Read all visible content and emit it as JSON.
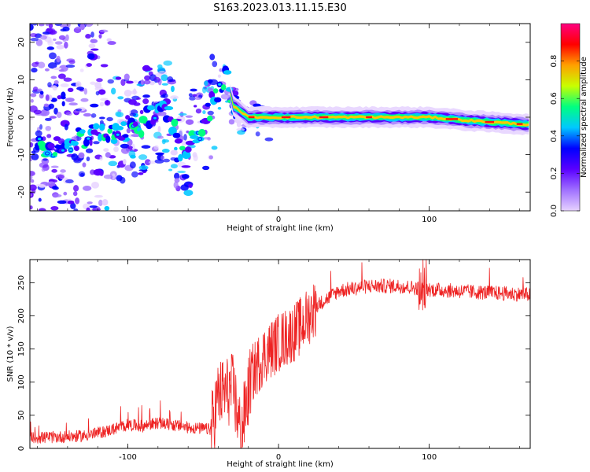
{
  "title": "S163.2023.013.11.15.E30",
  "chart_data": [
    {
      "type": "heatmap",
      "xlabel": "Height of straight line (km)",
      "ylabel": "Frequency (Hz)",
      "xlim": [
        -165,
        167
      ],
      "ylim": [
        -25,
        25
      ],
      "xticks": [
        -100,
        0,
        100
      ],
      "yticks": [
        -20,
        -10,
        0,
        10,
        20
      ],
      "grid": false,
      "colorbar": {
        "label": "Normalized spectral amplitude",
        "range": [
          0,
          1
        ],
        "ticks": [
          "0.0",
          "0.2",
          "0.4",
          "0.6",
          "0.8"
        ],
        "colormap": [
          "#ffffff",
          "#e6d2ff",
          "#a070ff",
          "#5a00ff",
          "#0000ff",
          "#00c8ff",
          "#00ff80",
          "#c8ff00",
          "#ffa000",
          "#ff0000",
          "#ff0080"
        ]
      },
      "ridge": [
        {
          "x": -150,
          "y": -8
        },
        {
          "x": -130,
          "y": -5
        },
        {
          "x": -110,
          "y": -3
        },
        {
          "x": -95,
          "y": -3
        },
        {
          "x": -85,
          "y": 0
        },
        {
          "x": -75,
          "y": 2
        },
        {
          "x": -65,
          "y": -8
        },
        {
          "x": -55,
          "y": -6
        },
        {
          "x": -45,
          "y": 3
        },
        {
          "x": -35,
          "y": 11
        },
        {
          "x": -30,
          "y": 3
        },
        {
          "x": -20,
          "y": 0
        },
        {
          "x": 0,
          "y": 0
        },
        {
          "x": 50,
          "y": 0
        },
        {
          "x": 100,
          "y": 0
        },
        {
          "x": 130,
          "y": -1
        },
        {
          "x": 167,
          "y": -2
        }
      ]
    },
    {
      "type": "line",
      "xlabel": "Height of straight line (km)",
      "ylabel": "SNR (10 * v/v)",
      "xlim": [
        -165,
        167
      ],
      "ylim": [
        0,
        285
      ],
      "xticks": [
        -100,
        0,
        100
      ],
      "yticks": [
        0,
        50,
        100,
        150,
        200,
        250
      ],
      "grid": false,
      "color": "#ee2222",
      "trend": [
        {
          "x": -165,
          "y": 12
        },
        {
          "x": -130,
          "y": 15
        },
        {
          "x": -115,
          "y": 22
        },
        {
          "x": -100,
          "y": 32
        },
        {
          "x": -90,
          "y": 30
        },
        {
          "x": -80,
          "y": 35
        },
        {
          "x": -60,
          "y": 28
        },
        {
          "x": -45,
          "y": 25
        },
        {
          "x": -40,
          "y": 80
        },
        {
          "x": -30,
          "y": 90
        },
        {
          "x": -25,
          "y": 20
        },
        {
          "x": -18,
          "y": 110
        },
        {
          "x": -10,
          "y": 140
        },
        {
          "x": 0,
          "y": 160
        },
        {
          "x": 10,
          "y": 175
        },
        {
          "x": 15,
          "y": 185
        },
        {
          "x": 25,
          "y": 215
        },
        {
          "x": 40,
          "y": 238
        },
        {
          "x": 60,
          "y": 245
        },
        {
          "x": 80,
          "y": 245
        },
        {
          "x": 100,
          "y": 240
        },
        {
          "x": 130,
          "y": 236
        },
        {
          "x": 167,
          "y": 232
        }
      ]
    }
  ]
}
